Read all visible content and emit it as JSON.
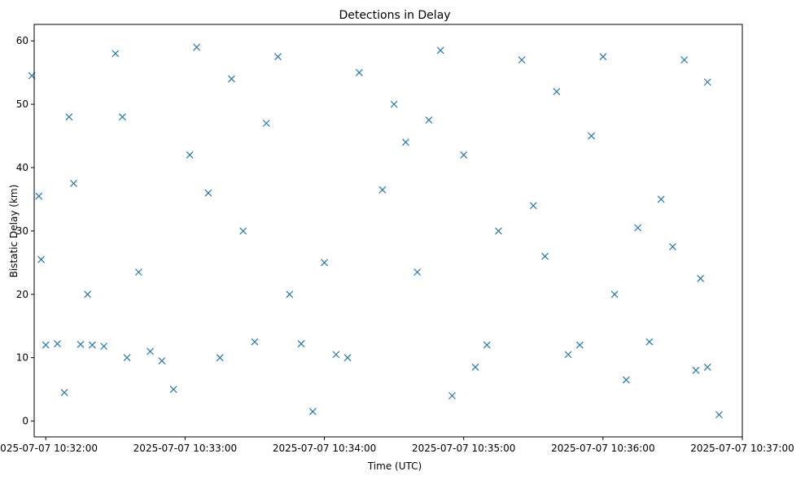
{
  "chart_data": {
    "type": "scatter",
    "title": "Detections in Delay",
    "xlabel": "Time (UTC)",
    "ylabel": "Bistatic Delay (km)",
    "marker": "x",
    "color": "#1f77b4",
    "xlim": [
      "2025-07-07 10:31:55",
      "2025-07-07 10:37:00"
    ],
    "ylim": [
      -2.5,
      62.6
    ],
    "x_ticks": [
      "2025-07-07 10:32:00",
      "2025-07-07 10:33:00",
      "2025-07-07 10:34:00",
      "2025-07-07 10:35:00",
      "2025-07-07 10:36:00",
      "2025-07-07 10:37:00"
    ],
    "y_ticks": [
      0,
      10,
      20,
      30,
      40,
      50,
      60
    ],
    "grid": false,
    "x": [
      "10:31:54",
      "10:32:30",
      "10:33:05",
      "10:33:40",
      "10:34:15",
      "10:34:50",
      "10:35:25",
      "10:36:00",
      "10:36:35",
      "10:31:57",
      "10:32:10",
      "10:33:20",
      "10:34:30",
      "10:35:40",
      "10:36:45",
      "10:32:00",
      "10:32:05",
      "10:32:15",
      "10:32:20",
      "10:32:25",
      "10:32:35",
      "10:32:45",
      "10:33:15",
      "10:33:50",
      "10:34:05",
      "10:35:10",
      "10:35:50",
      "10:36:20",
      "10:36:45",
      "10:32:50",
      "10:33:30",
      "10:34:10",
      "10:35:05",
      "10:35:45",
      "10:36:10",
      "10:36:40",
      "10:32:40",
      "10:33:25",
      "10:34:40",
      "10:35:30",
      "10:36:30",
      "10:32:12",
      "10:33:10",
      "10:34:25",
      "10:35:15",
      "10:36:25",
      "10:31:58",
      "10:32:55",
      "10:33:55",
      "10:34:55",
      "10:36:50",
      "10:32:33",
      "10:33:45",
      "10:34:45",
      "10:35:55",
      "10:36:05",
      "10:32:08",
      "10:33:02",
      "10:34:00",
      "10:35:00",
      "10:36:15",
      "10:32:18",
      "10:33:35",
      "10:34:35",
      "10:35:35",
      "10:36:42"
    ],
    "y": [
      54.5,
      58.0,
      59.0,
      57.5,
      55.0,
      58.5,
      57.0,
      57.5,
      57.0,
      35.5,
      48.0,
      54.0,
      50.0,
      52.0,
      53.5,
      12.0,
      12.2,
      12.1,
      12.0,
      11.8,
      10.0,
      11.0,
      10.0,
      12.2,
      10.5,
      12.0,
      12.0,
      12.5,
      8.5,
      9.5,
      12.5,
      10.0,
      8.5,
      10.5,
      6.5,
      8.0,
      23.5,
      30.0,
      23.5,
      34.0,
      27.5,
      37.5,
      36.0,
      36.5,
      30.0,
      35.0,
      25.5,
      5.0,
      1.5,
      4.0,
      1.0,
      48.0,
      20.0,
      47.5,
      45.0,
      20.0,
      4.5,
      42.0,
      25.0,
      42.0,
      30.5,
      20.0,
      47.0,
      44.0,
      26.0,
      22.5
    ]
  }
}
